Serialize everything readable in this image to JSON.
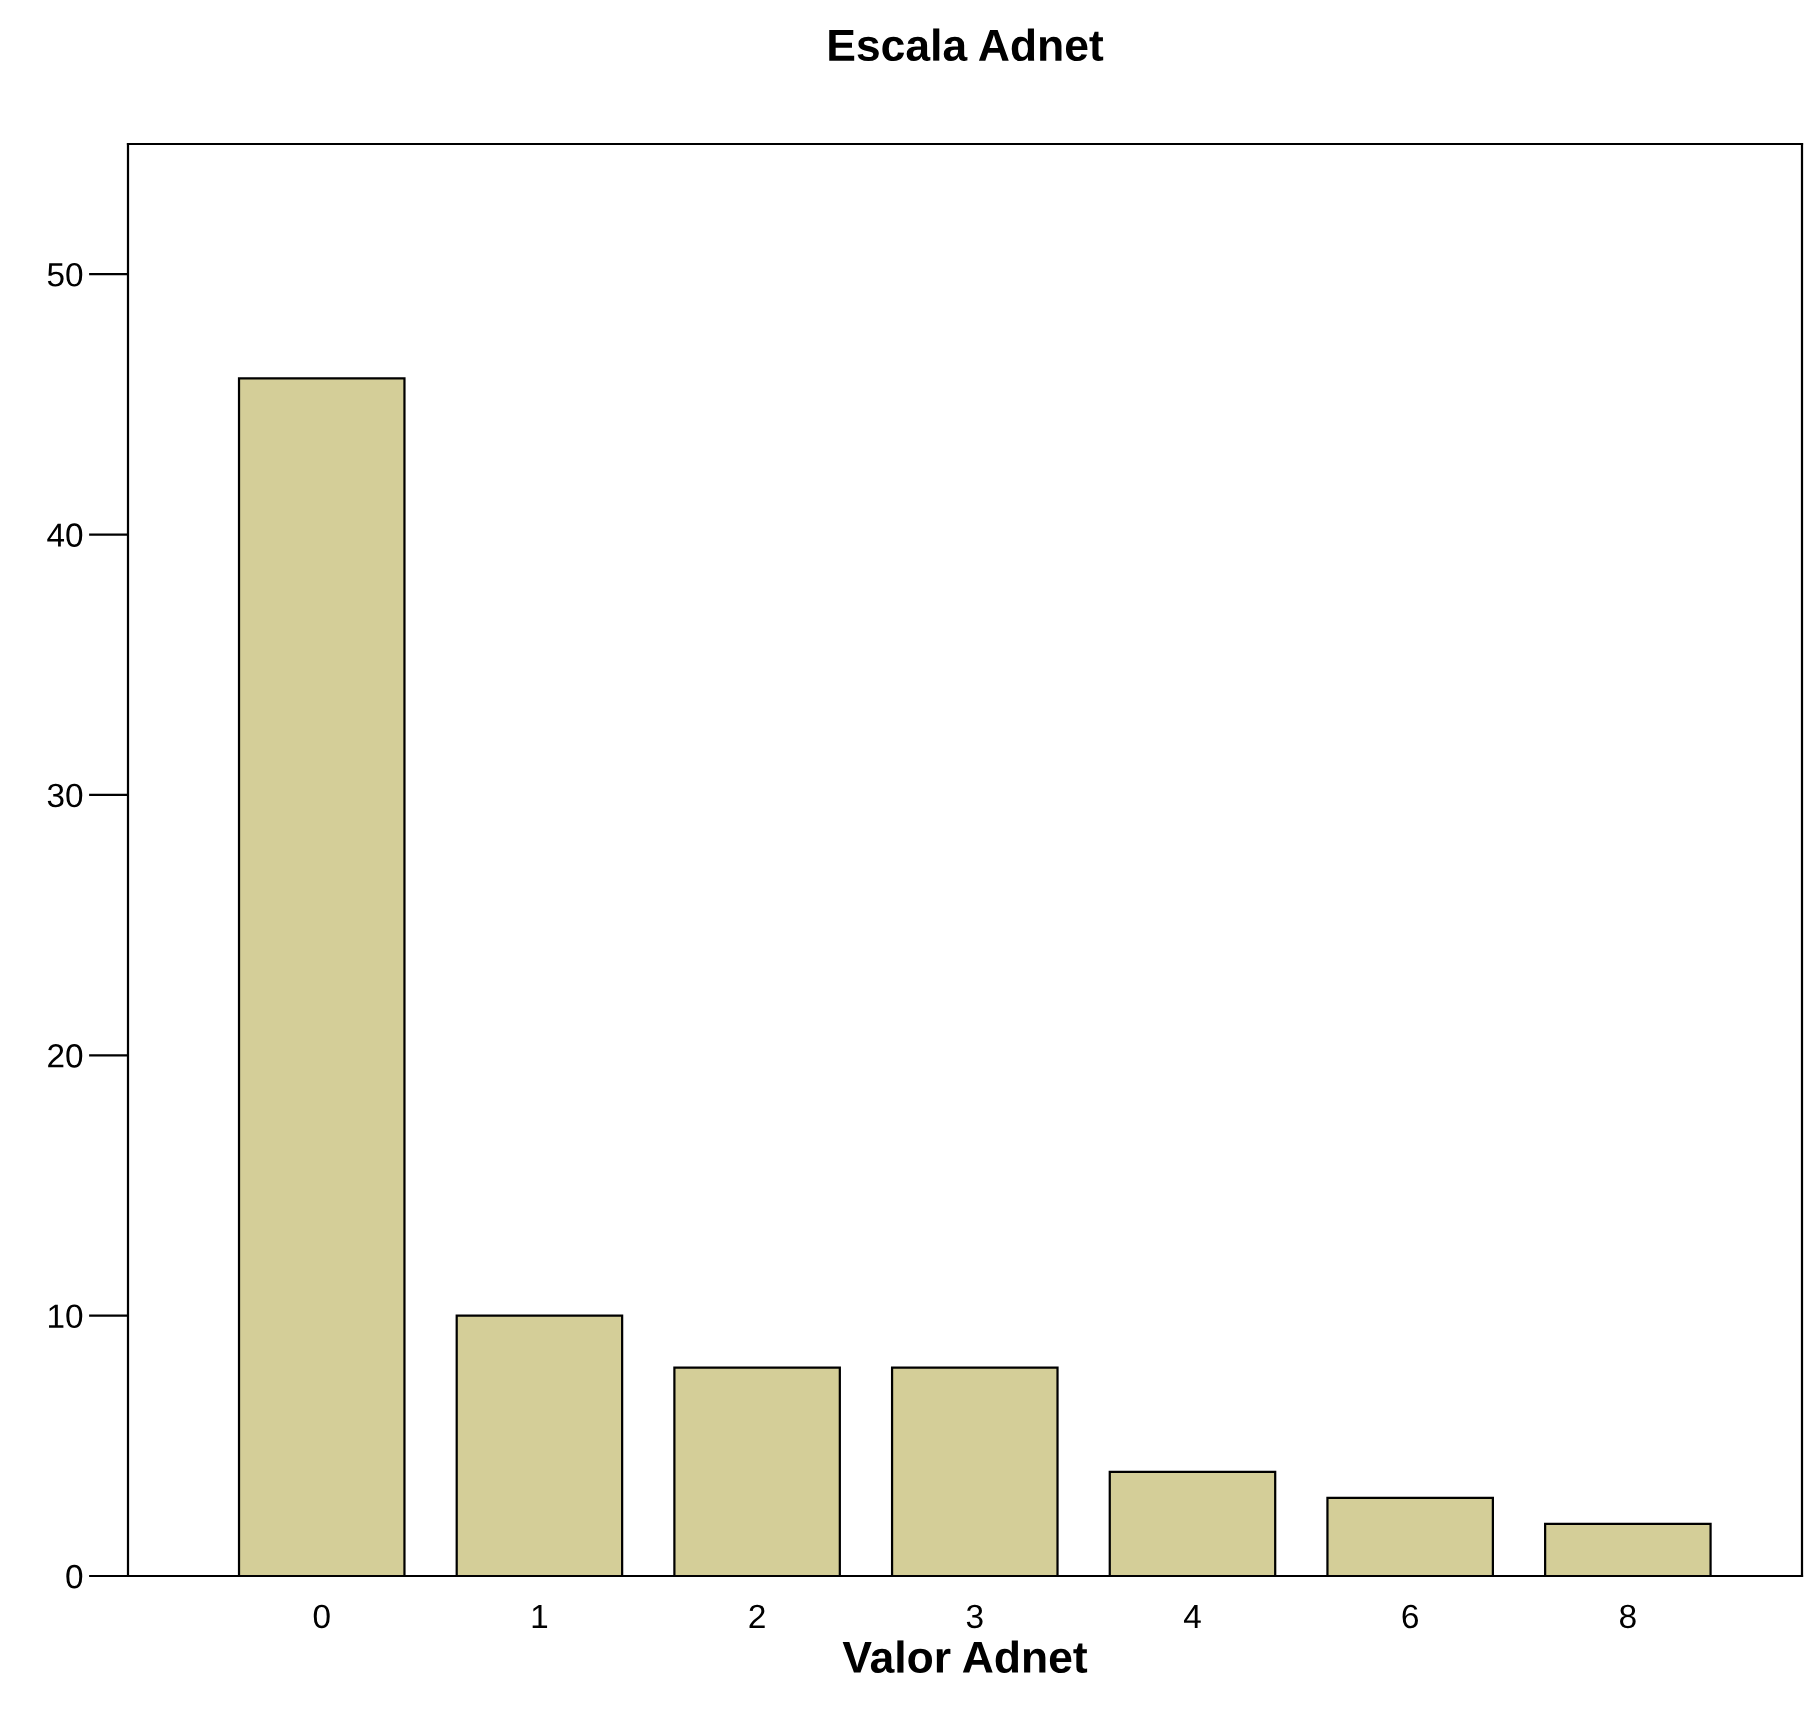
{
  "chart_data": {
    "type": "bar",
    "title": "Escala Adnet",
    "xlabel": "Valor Adnet",
    "categories": [
      "0",
      "1",
      "2",
      "3",
      "4",
      "6",
      "8"
    ],
    "values": [
      46,
      10,
      8,
      8,
      4,
      3,
      2
    ],
    "color": "#d4ce98",
    "ylim": [
      0,
      55
    ],
    "yticks": [
      0,
      10,
      20,
      30,
      40,
      50
    ],
    "grid": false,
    "legend": false
  }
}
